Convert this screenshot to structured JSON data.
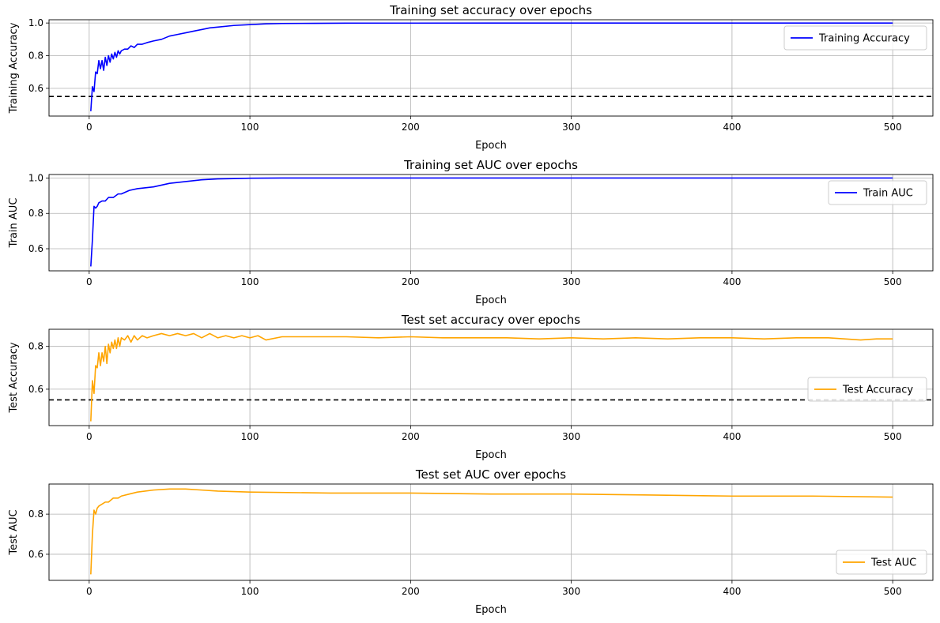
{
  "chart_data": [
    {
      "type": "line",
      "title": "Training set accuracy over epochs",
      "xlabel": "Epoch",
      "ylabel": "Training Accuracy",
      "xlim": [
        -25,
        525
      ],
      "ylim": [
        0.43,
        1.02
      ],
      "xticks": [
        0,
        100,
        200,
        300,
        400,
        500
      ],
      "yticks": [
        0.6,
        0.8,
        1.0
      ],
      "ytick_labels": [
        "0.6",
        "0.8",
        "1.0"
      ],
      "grid": true,
      "legend_position": "upper right",
      "hline": {
        "y": 0.55,
        "style": "dashed",
        "color": "#000000"
      },
      "series": [
        {
          "name": "Training Accuracy",
          "color": "#0000ff",
          "x": [
            1,
            2,
            3,
            4,
            5,
            6,
            7,
            8,
            9,
            10,
            11,
            12,
            13,
            14,
            15,
            16,
            17,
            18,
            19,
            20,
            22,
            24,
            26,
            28,
            30,
            33,
            36,
            40,
            45,
            50,
            55,
            60,
            65,
            70,
            75,
            80,
            90,
            100,
            110,
            120,
            140,
            160,
            200,
            250,
            300,
            350,
            400,
            450,
            500
          ],
          "values": [
            0.46,
            0.61,
            0.58,
            0.7,
            0.69,
            0.77,
            0.72,
            0.77,
            0.71,
            0.79,
            0.74,
            0.8,
            0.76,
            0.81,
            0.78,
            0.82,
            0.79,
            0.83,
            0.81,
            0.83,
            0.84,
            0.84,
            0.86,
            0.85,
            0.87,
            0.87,
            0.88,
            0.89,
            0.9,
            0.92,
            0.93,
            0.94,
            0.95,
            0.96,
            0.97,
            0.975,
            0.985,
            0.99,
            0.995,
            0.997,
            0.998,
            0.999,
            0.9995,
            1.0,
            1.0,
            1.0,
            1.0,
            1.0,
            1.0
          ]
        }
      ]
    },
    {
      "type": "line",
      "title": "Training set AUC over epochs",
      "xlabel": "Epoch",
      "ylabel": "Train AUC",
      "xlim": [
        -25,
        525
      ],
      "ylim": [
        0.475,
        1.02
      ],
      "xticks": [
        0,
        100,
        200,
        300,
        400,
        500
      ],
      "yticks": [
        0.6,
        0.8,
        1.0
      ],
      "ytick_labels": [
        "0.6",
        "0.8",
        "1.0"
      ],
      "grid": true,
      "legend_position": "upper right",
      "series": [
        {
          "name": "Train AUC",
          "color": "#0000ff",
          "x": [
            1,
            2,
            3,
            4,
            5,
            6,
            8,
            10,
            12,
            15,
            18,
            20,
            25,
            30,
            40,
            50,
            60,
            70,
            80,
            90,
            100,
            120,
            150,
            200,
            300,
            400,
            500
          ],
          "values": [
            0.5,
            0.65,
            0.84,
            0.83,
            0.84,
            0.86,
            0.87,
            0.87,
            0.89,
            0.89,
            0.91,
            0.91,
            0.93,
            0.94,
            0.95,
            0.97,
            0.98,
            0.99,
            0.995,
            0.997,
            0.999,
            1.0,
            1.0,
            1.0,
            1.0,
            1.0,
            1.0
          ]
        }
      ]
    },
    {
      "type": "line",
      "title": "Test set accuracy over epochs",
      "xlabel": "Epoch",
      "ylabel": "Test Accuracy",
      "xlim": [
        -25,
        525
      ],
      "ylim": [
        0.43,
        0.88
      ],
      "xticks": [
        0,
        100,
        200,
        300,
        400,
        500
      ],
      "yticks": [
        0.6,
        0.8
      ],
      "ytick_labels": [
        "0.6",
        "0.8"
      ],
      "grid": true,
      "legend_position": "center right",
      "hline": {
        "y": 0.55,
        "style": "dashed",
        "color": "#000000"
      },
      "series": [
        {
          "name": "Test Accuracy",
          "color": "#ffa500",
          "x": [
            1,
            2,
            3,
            4,
            5,
            6,
            7,
            8,
            9,
            10,
            11,
            12,
            13,
            14,
            15,
            16,
            17,
            18,
            19,
            20,
            22,
            24,
            26,
            28,
            30,
            33,
            36,
            40,
            45,
            50,
            55,
            60,
            65,
            70,
            75,
            80,
            85,
            90,
            95,
            100,
            105,
            110,
            120,
            140,
            160,
            180,
            200,
            220,
            240,
            260,
            280,
            300,
            320,
            340,
            360,
            380,
            400,
            420,
            440,
            460,
            480,
            490,
            500
          ],
          "values": [
            0.45,
            0.64,
            0.58,
            0.71,
            0.7,
            0.77,
            0.71,
            0.77,
            0.73,
            0.8,
            0.72,
            0.81,
            0.77,
            0.82,
            0.79,
            0.83,
            0.79,
            0.84,
            0.8,
            0.84,
            0.83,
            0.85,
            0.82,
            0.85,
            0.83,
            0.85,
            0.84,
            0.85,
            0.86,
            0.85,
            0.86,
            0.85,
            0.86,
            0.84,
            0.86,
            0.84,
            0.85,
            0.84,
            0.85,
            0.84,
            0.85,
            0.83,
            0.845,
            0.845,
            0.845,
            0.84,
            0.845,
            0.84,
            0.84,
            0.84,
            0.835,
            0.84,
            0.835,
            0.84,
            0.835,
            0.84,
            0.84,
            0.835,
            0.84,
            0.84,
            0.83,
            0.835,
            0.835
          ]
        }
      ]
    },
    {
      "type": "line",
      "title": "Test set AUC over epochs",
      "xlabel": "Epoch",
      "ylabel": "Test AUC",
      "xlim": [
        -25,
        525
      ],
      "ylim": [
        0.47,
        0.95
      ],
      "xticks": [
        0,
        100,
        200,
        300,
        400,
        500
      ],
      "yticks": [
        0.6,
        0.8
      ],
      "ytick_labels": [
        "0.6",
        "0.8"
      ],
      "grid": true,
      "legend_position": "lower right",
      "series": [
        {
          "name": "Test AUC",
          "color": "#ffa500",
          "x": [
            1,
            2,
            3,
            4,
            5,
            6,
            8,
            10,
            12,
            15,
            18,
            20,
            25,
            30,
            40,
            50,
            55,
            60,
            70,
            80,
            100,
            150,
            200,
            250,
            300,
            350,
            400,
            450,
            500
          ],
          "values": [
            0.5,
            0.7,
            0.82,
            0.8,
            0.83,
            0.84,
            0.85,
            0.86,
            0.86,
            0.88,
            0.88,
            0.89,
            0.9,
            0.91,
            0.92,
            0.925,
            0.925,
            0.925,
            0.92,
            0.915,
            0.91,
            0.905,
            0.905,
            0.9,
            0.9,
            0.895,
            0.89,
            0.89,
            0.885
          ]
        }
      ]
    }
  ]
}
